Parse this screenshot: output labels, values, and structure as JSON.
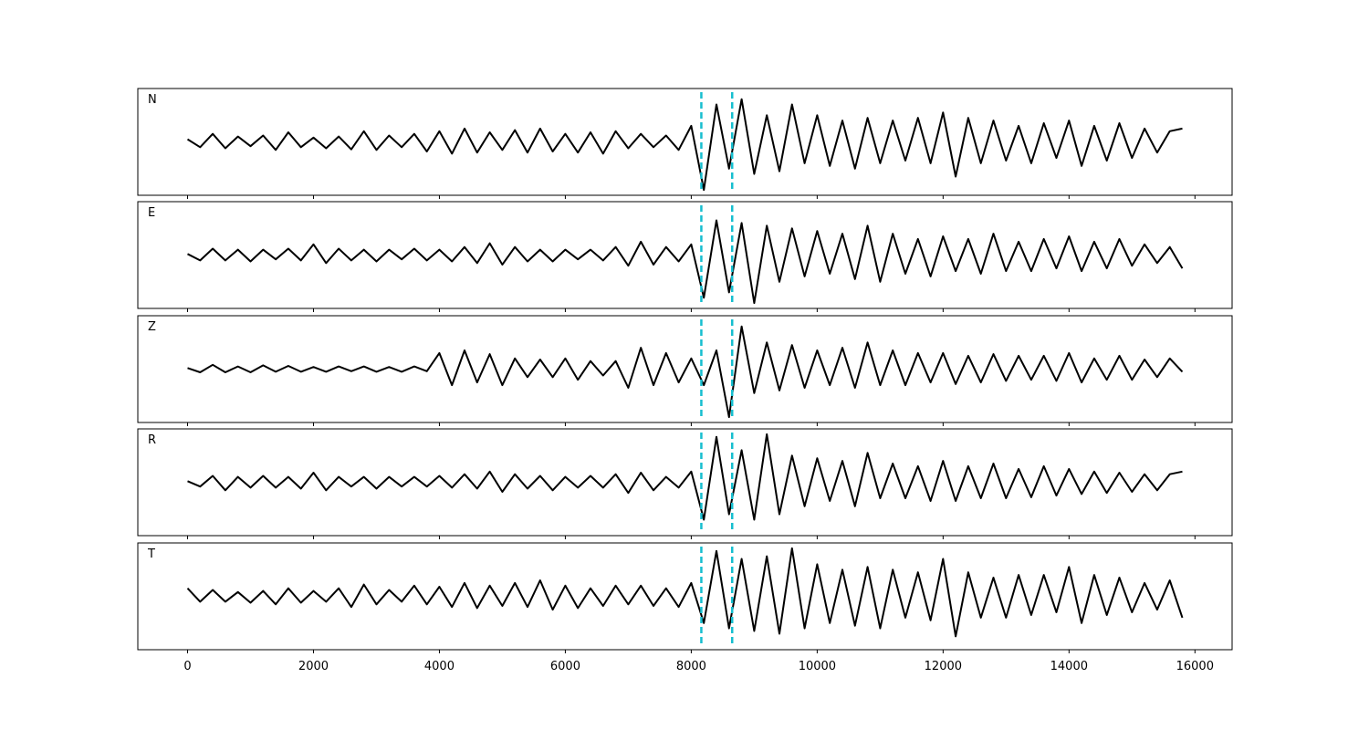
{
  "chart_data": [
    {
      "type": "line",
      "label": "N",
      "color": "#000000",
      "ylim": [
        -1,
        1
      ],
      "xlim": [
        -790,
        16590
      ],
      "xticks": [
        0,
        2000,
        4000,
        6000,
        8000,
        10000,
        12000,
        14000,
        16000
      ],
      "vlines": [
        8160,
        8650
      ],
      "vline_color": "#17becf",
      "x": [
        0,
        200,
        400,
        600,
        800,
        1000,
        1200,
        1400,
        1600,
        1800,
        2000,
        2200,
        2400,
        2600,
        2800,
        3000,
        3200,
        3400,
        3600,
        3800,
        4000,
        4200,
        4400,
        4600,
        4800,
        5000,
        5200,
        5400,
        5600,
        5800,
        6000,
        6200,
        6400,
        6600,
        6800,
        7000,
        7200,
        7400,
        7600,
        7800,
        8000,
        8200,
        8400,
        8600,
        8800,
        9000,
        9200,
        9400,
        9600,
        9800,
        10000,
        10200,
        10400,
        10600,
        10800,
        11000,
        11200,
        11400,
        11600,
        11800,
        12000,
        12200,
        12400,
        12600,
        12800,
        13000,
        13200,
        13400,
        13600,
        13800,
        14000,
        14200,
        14400,
        14600,
        14800,
        15000,
        15200,
        15400,
        15600,
        15800
      ],
      "values": [
        0.05,
        -0.1,
        0.15,
        -0.12,
        0.1,
        -0.08,
        0.12,
        -0.15,
        0.18,
        -0.1,
        0.08,
        -0.12,
        0.1,
        -0.14,
        0.2,
        -0.15,
        0.12,
        -0.1,
        0.15,
        -0.18,
        0.2,
        -0.22,
        0.25,
        -0.2,
        0.18,
        -0.15,
        0.22,
        -0.2,
        0.25,
        -0.18,
        0.15,
        -0.2,
        0.18,
        -0.22,
        0.2,
        -0.12,
        0.15,
        -0.1,
        0.12,
        -0.15,
        0.3,
        -0.9,
        0.7,
        -0.5,
        0.8,
        -0.6,
        0.5,
        -0.55,
        0.7,
        -0.4,
        0.5,
        -0.45,
        0.4,
        -0.5,
        0.45,
        -0.4,
        0.4,
        -0.35,
        0.45,
        -0.4,
        0.55,
        -0.65,
        0.45,
        -0.4,
        0.4,
        -0.35,
        0.3,
        -0.4,
        0.35,
        -0.3,
        0.4,
        -0.45,
        0.3,
        -0.35,
        0.35,
        -0.3,
        0.25,
        -0.2,
        0.2,
        0.25
      ]
    },
    {
      "type": "line",
      "label": "E",
      "color": "#000000",
      "ylim": [
        -1,
        1
      ],
      "xlim": [
        -790,
        16590
      ],
      "xticks": [
        0,
        2000,
        4000,
        6000,
        8000,
        10000,
        12000,
        14000,
        16000
      ],
      "vlines": [
        8160,
        8650
      ],
      "vline_color": "#17becf",
      "x": [
        0,
        200,
        400,
        600,
        800,
        1000,
        1200,
        1400,
        1600,
        1800,
        2000,
        2200,
        2400,
        2600,
        2800,
        3000,
        3200,
        3400,
        3600,
        3800,
        4000,
        4200,
        4400,
        4600,
        4800,
        5000,
        5200,
        5400,
        5600,
        5800,
        6000,
        6200,
        6400,
        6600,
        6800,
        7000,
        7200,
        7400,
        7600,
        7800,
        8000,
        8200,
        8400,
        8600,
        8800,
        9000,
        9200,
        9400,
        9600,
        9800,
        10000,
        10200,
        10400,
        10600,
        10800,
        11000,
        11200,
        11400,
        11600,
        11800,
        12000,
        12200,
        12400,
        12600,
        12800,
        13000,
        13200,
        13400,
        13600,
        13800,
        14000,
        14200,
        14400,
        14600,
        14800,
        15000,
        15200,
        15400,
        15600,
        15800
      ],
      "values": [
        0.02,
        -0.1,
        0.12,
        -0.1,
        0.1,
        -0.12,
        0.1,
        -0.08,
        0.12,
        -0.1,
        0.2,
        -0.15,
        0.12,
        -0.1,
        0.1,
        -0.12,
        0.1,
        -0.08,
        0.12,
        -0.1,
        0.1,
        -0.12,
        0.15,
        -0.15,
        0.22,
        -0.18,
        0.15,
        -0.12,
        0.1,
        -0.12,
        0.1,
        -0.08,
        0.1,
        -0.1,
        0.15,
        -0.2,
        0.25,
        -0.18,
        0.15,
        -0.12,
        0.2,
        -0.8,
        0.65,
        -0.7,
        0.6,
        -0.9,
        0.55,
        -0.5,
        0.5,
        -0.4,
        0.45,
        -0.35,
        0.4,
        -0.45,
        0.55,
        -0.5,
        0.4,
        -0.35,
        0.3,
        -0.4,
        0.35,
        -0.3,
        0.3,
        -0.35,
        0.4,
        -0.3,
        0.25,
        -0.3,
        0.3,
        -0.25,
        0.35,
        -0.3,
        0.25,
        -0.25,
        0.3,
        -0.2,
        0.2,
        -0.15,
        0.15,
        -0.25
      ]
    },
    {
      "type": "line",
      "label": "Z",
      "color": "#000000",
      "ylim": [
        -1,
        1
      ],
      "xlim": [
        -790,
        16590
      ],
      "xticks": [
        0,
        2000,
        4000,
        6000,
        8000,
        10000,
        12000,
        14000,
        16000
      ],
      "vlines": [
        8160,
        8650
      ],
      "vline_color": "#17becf",
      "x": [
        0,
        200,
        400,
        600,
        800,
        1000,
        1200,
        1400,
        1600,
        1800,
        2000,
        2200,
        2400,
        2600,
        2800,
        3000,
        3200,
        3400,
        3600,
        3800,
        4000,
        4200,
        4400,
        4600,
        4800,
        5000,
        5200,
        5400,
        5600,
        5800,
        6000,
        6200,
        6400,
        6600,
        6800,
        7000,
        7200,
        7400,
        7600,
        7800,
        8000,
        8200,
        8400,
        8600,
        8800,
        9000,
        9200,
        9400,
        9600,
        9800,
        10000,
        10200,
        10400,
        10600,
        10800,
        11000,
        11200,
        11400,
        11600,
        11800,
        12000,
        12200,
        12400,
        12600,
        12800,
        13000,
        13200,
        13400,
        13600,
        13800,
        14000,
        14200,
        14400,
        14600,
        14800,
        15000,
        15200,
        15400,
        15600,
        15800
      ],
      "values": [
        0.02,
        -0.06,
        0.08,
        -0.06,
        0.05,
        -0.06,
        0.07,
        -0.05,
        0.06,
        -0.05,
        0.04,
        -0.05,
        0.05,
        -0.04,
        0.05,
        -0.05,
        0.04,
        -0.05,
        0.05,
        -0.04,
        0.3,
        -0.3,
        0.35,
        -0.25,
        0.28,
        -0.3,
        0.2,
        -0.15,
        0.18,
        -0.15,
        0.2,
        -0.2,
        0.15,
        -0.12,
        0.15,
        -0.35,
        0.4,
        -0.3,
        0.3,
        -0.25,
        0.2,
        -0.3,
        0.35,
        -0.9,
        0.8,
        -0.45,
        0.5,
        -0.4,
        0.45,
        -0.35,
        0.35,
        -0.3,
        0.4,
        -0.35,
        0.5,
        -0.3,
        0.35,
        -0.3,
        0.3,
        -0.25,
        0.3,
        -0.28,
        0.25,
        -0.25,
        0.28,
        -0.22,
        0.25,
        -0.2,
        0.25,
        -0.22,
        0.3,
        -0.25,
        0.2,
        -0.2,
        0.25,
        -0.2,
        0.18,
        -0.15,
        0.2,
        -0.05
      ]
    },
    {
      "type": "line",
      "label": "R",
      "color": "#000000",
      "ylim": [
        -1,
        1
      ],
      "xlim": [
        -790,
        16590
      ],
      "xticks": [
        0,
        2000,
        4000,
        6000,
        8000,
        10000,
        12000,
        14000,
        16000
      ],
      "vlines": [
        8160,
        8650
      ],
      "vline_color": "#17becf",
      "x": [
        0,
        200,
        400,
        600,
        800,
        1000,
        1200,
        1400,
        1600,
        1800,
        2000,
        2200,
        2400,
        2600,
        2800,
        3000,
        3200,
        3400,
        3600,
        3800,
        4000,
        4200,
        4400,
        4600,
        4800,
        5000,
        5200,
        5400,
        5600,
        5800,
        6000,
        6200,
        6400,
        6600,
        6800,
        7000,
        7200,
        7400,
        7600,
        7800,
        8000,
        8200,
        8400,
        8600,
        8800,
        9000,
        9200,
        9400,
        9600,
        9800,
        10000,
        10200,
        10400,
        10600,
        10800,
        11000,
        11200,
        11400,
        11600,
        11800,
        12000,
        12200,
        12400,
        12600,
        12800,
        13000,
        13200,
        13400,
        13600,
        13800,
        14000,
        14200,
        14400,
        14600,
        14800,
        15000,
        15200,
        15400,
        15600,
        15800
      ],
      "values": [
        0.02,
        -0.08,
        0.12,
        -0.15,
        0.1,
        -0.1,
        0.12,
        -0.1,
        0.1,
        -0.12,
        0.18,
        -0.15,
        0.1,
        -0.08,
        0.1,
        -0.12,
        0.1,
        -0.08,
        0.1,
        -0.08,
        0.12,
        -0.1,
        0.15,
        -0.12,
        0.2,
        -0.18,
        0.15,
        -0.12,
        0.12,
        -0.15,
        0.1,
        -0.1,
        0.12,
        -0.1,
        0.15,
        -0.2,
        0.18,
        -0.15,
        0.1,
        -0.1,
        0.2,
        -0.7,
        0.85,
        -0.6,
        0.6,
        -0.7,
        0.9,
        -0.6,
        0.5,
        -0.45,
        0.45,
        -0.35,
        0.4,
        -0.45,
        0.55,
        -0.3,
        0.35,
        -0.3,
        0.3,
        -0.35,
        0.4,
        -0.35,
        0.3,
        -0.3,
        0.35,
        -0.3,
        0.25,
        -0.28,
        0.3,
        -0.25,
        0.25,
        -0.22,
        0.2,
        -0.2,
        0.18,
        -0.18,
        0.15,
        -0.15,
        0.15,
        0.2
      ]
    },
    {
      "type": "line",
      "label": "T",
      "color": "#000000",
      "ylim": [
        -1,
        1
      ],
      "xlim": [
        -790,
        16590
      ],
      "xticks": [
        0,
        2000,
        4000,
        6000,
        8000,
        10000,
        12000,
        14000,
        16000
      ],
      "vlines": [
        8160,
        8650
      ],
      "vline_color": "#17becf",
      "x": [
        0,
        200,
        400,
        600,
        800,
        1000,
        1200,
        1400,
        1600,
        1800,
        2000,
        2200,
        2400,
        2600,
        2800,
        3000,
        3200,
        3400,
        3600,
        3800,
        4000,
        4200,
        4400,
        4600,
        4800,
        5000,
        5200,
        5400,
        5600,
        5800,
        6000,
        6200,
        6400,
        6600,
        6800,
        7000,
        7200,
        7400,
        7600,
        7800,
        8000,
        8200,
        8400,
        8600,
        8800,
        9000,
        9200,
        9400,
        9600,
        9800,
        10000,
        10200,
        10400,
        10600,
        10800,
        11000,
        11200,
        11400,
        11600,
        11800,
        12000,
        12200,
        12400,
        12600,
        12800,
        13000,
        13200,
        13400,
        13600,
        13800,
        14000,
        14200,
        14400,
        14600,
        14800,
        15000,
        15200,
        15400,
        15600,
        15800
      ],
      "values": [
        0.15,
        -0.1,
        0.12,
        -0.1,
        0.08,
        -0.12,
        0.1,
        -0.15,
        0.15,
        -0.12,
        0.1,
        -0.1,
        0.15,
        -0.2,
        0.22,
        -0.15,
        0.12,
        -0.1,
        0.2,
        -0.15,
        0.18,
        -0.2,
        0.25,
        -0.22,
        0.2,
        -0.18,
        0.25,
        -0.2,
        0.3,
        -0.25,
        0.2,
        -0.22,
        0.15,
        -0.18,
        0.2,
        -0.15,
        0.2,
        -0.18,
        0.15,
        -0.2,
        0.25,
        -0.5,
        0.85,
        -0.6,
        0.7,
        -0.65,
        0.75,
        -0.7,
        0.9,
        -0.6,
        0.6,
        -0.5,
        0.5,
        -0.55,
        0.55,
        -0.6,
        0.5,
        -0.4,
        0.45,
        -0.45,
        0.7,
        -0.75,
        0.45,
        -0.4,
        0.35,
        -0.4,
        0.4,
        -0.35,
        0.4,
        -0.3,
        0.55,
        -0.5,
        0.4,
        -0.35,
        0.35,
        -0.3,
        0.25,
        -0.25,
        0.3,
        -0.4
      ]
    }
  ]
}
